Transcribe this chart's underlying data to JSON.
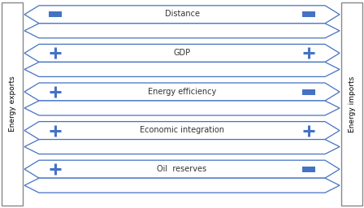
{
  "rows": [
    {
      "label": "Distance",
      "left_plus": false,
      "right_plus": false
    },
    {
      "label": "GDP",
      "left_plus": true,
      "right_plus": true
    },
    {
      "label": "Energy efficiency",
      "left_plus": true,
      "right_plus": false
    },
    {
      "label": "Economic integration",
      "left_plus": true,
      "right_plus": true
    },
    {
      "label": "Oil  reserves",
      "left_plus": true,
      "right_plus": false
    }
  ],
  "arrow_color": "#4472C4",
  "sign_color": "#4472C4",
  "text_color": "#333333",
  "left_label": "Energy exports",
  "right_label": "Energy imports",
  "fig_width": 4.48,
  "fig_height": 2.56,
  "dpi": 100
}
